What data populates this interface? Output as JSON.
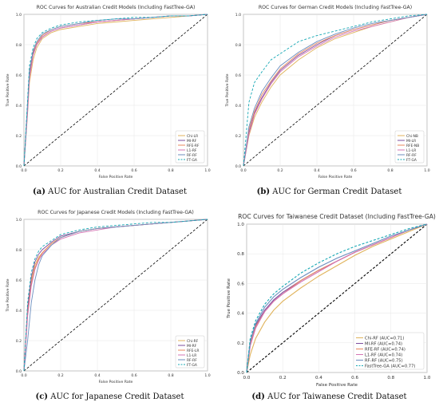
{
  "chart_data": [
    {
      "type": "line",
      "title": "ROC Curves for Australian Credit Models (Including FastTree-GA)",
      "caption_label": "(a)",
      "caption_text": "AUC for Australian Credit Dataset",
      "xlabel": "False Positive Rate",
      "ylabel": "True Positive Rate",
      "xlim": [
        0,
        1
      ],
      "ylim": [
        0,
        1
      ],
      "xticks": [
        "0.0",
        "0.2",
        "0.4",
        "0.6",
        "0.8",
        "1.0"
      ],
      "yticks": [
        "0.0",
        "0.2",
        "0.4",
        "0.6",
        "0.8",
        "1.0"
      ],
      "grid": true,
      "legend_position": "bottom-right",
      "series": [
        {
          "name": "Chi-LR",
          "color": "#e0b35c",
          "dash": false,
          "x": [
            0,
            0.02,
            0.03,
            0.05,
            0.07,
            0.1,
            0.15,
            0.2,
            0.3,
            0.4,
            0.5,
            0.6,
            0.7,
            0.8,
            0.9,
            1.0
          ],
          "y": [
            0,
            0.35,
            0.55,
            0.7,
            0.78,
            0.84,
            0.88,
            0.9,
            0.92,
            0.94,
            0.95,
            0.96,
            0.97,
            0.98,
            0.99,
            1.0
          ]
        },
        {
          "name": "MI-RF",
          "color": "#7d4e9e",
          "dash": false,
          "x": [
            0,
            0.02,
            0.03,
            0.05,
            0.07,
            0.1,
            0.15,
            0.2,
            0.3,
            0.4,
            0.5,
            0.6,
            0.7,
            0.8,
            0.9,
            1.0
          ],
          "y": [
            0,
            0.38,
            0.6,
            0.74,
            0.8,
            0.85,
            0.89,
            0.91,
            0.93,
            0.95,
            0.96,
            0.97,
            0.98,
            0.99,
            0.99,
            1.0
          ]
        },
        {
          "name": "RFE-RF",
          "color": "#e8875e",
          "dash": false,
          "x": [
            0,
            0.02,
            0.03,
            0.05,
            0.07,
            0.1,
            0.15,
            0.2,
            0.3,
            0.4,
            0.5,
            0.6,
            0.7,
            0.8,
            0.9,
            1.0
          ],
          "y": [
            0,
            0.4,
            0.62,
            0.75,
            0.81,
            0.86,
            0.9,
            0.92,
            0.94,
            0.95,
            0.96,
            0.97,
            0.98,
            0.99,
            0.99,
            1.0
          ]
        },
        {
          "name": "L1-RF",
          "color": "#d474b4",
          "dash": false,
          "x": [
            0,
            0.02,
            0.03,
            0.05,
            0.07,
            0.1,
            0.15,
            0.2,
            0.3,
            0.4,
            0.5,
            0.6,
            0.7,
            0.8,
            0.9,
            1.0
          ],
          "y": [
            0,
            0.36,
            0.58,
            0.73,
            0.8,
            0.85,
            0.89,
            0.91,
            0.93,
            0.95,
            0.96,
            0.97,
            0.98,
            0.99,
            0.99,
            1.0
          ]
        },
        {
          "name": "RF-RF",
          "color": "#6c8ebf",
          "dash": false,
          "x": [
            0,
            0.02,
            0.03,
            0.05,
            0.07,
            0.1,
            0.15,
            0.2,
            0.3,
            0.4,
            0.5,
            0.6,
            0.7,
            0.8,
            0.9,
            1.0
          ],
          "y": [
            0,
            0.42,
            0.63,
            0.76,
            0.82,
            0.87,
            0.9,
            0.92,
            0.94,
            0.96,
            0.97,
            0.97,
            0.98,
            0.99,
            0.99,
            1.0
          ]
        },
        {
          "name": "FT-GA",
          "color": "#17a8b5",
          "dash": true,
          "x": [
            0,
            0.02,
            0.03,
            0.05,
            0.07,
            0.1,
            0.15,
            0.2,
            0.3,
            0.4,
            0.5,
            0.6,
            0.7,
            0.8,
            0.9,
            1.0
          ],
          "y": [
            0,
            0.44,
            0.66,
            0.78,
            0.84,
            0.88,
            0.91,
            0.93,
            0.95,
            0.96,
            0.97,
            0.98,
            0.98,
            0.99,
            0.99,
            1.0
          ]
        }
      ]
    },
    {
      "type": "line",
      "title": "ROC Curves for German Credit Models (Including FastTree-GA)",
      "caption_label": "(b)",
      "caption_text": "AUC for German Credit Dataset",
      "xlabel": "False Positive Rate",
      "ylabel": "True Positive Rate",
      "xlim": [
        0,
        1
      ],
      "ylim": [
        0,
        1
      ],
      "xticks": [
        "0.0",
        "0.2",
        "0.4",
        "0.6",
        "0.8",
        "1.0"
      ],
      "yticks": [
        "0.0",
        "0.2",
        "0.4",
        "0.6",
        "0.8",
        "1.0"
      ],
      "grid": true,
      "legend_position": "bottom-right",
      "series": [
        {
          "name": "Chi-NB",
          "color": "#e0b35c",
          "dash": false,
          "x": [
            0,
            0.03,
            0.06,
            0.1,
            0.15,
            0.2,
            0.3,
            0.4,
            0.5,
            0.6,
            0.7,
            0.8,
            0.9,
            1.0
          ],
          "y": [
            0,
            0.2,
            0.32,
            0.42,
            0.52,
            0.6,
            0.7,
            0.78,
            0.84,
            0.88,
            0.92,
            0.95,
            0.98,
            1.0
          ]
        },
        {
          "name": "MI-LR",
          "color": "#7d4e9e",
          "dash": false,
          "x": [
            0,
            0.03,
            0.06,
            0.1,
            0.15,
            0.2,
            0.3,
            0.4,
            0.5,
            0.6,
            0.7,
            0.8,
            0.9,
            1.0
          ],
          "y": [
            0,
            0.22,
            0.35,
            0.45,
            0.55,
            0.63,
            0.73,
            0.8,
            0.86,
            0.9,
            0.93,
            0.96,
            0.98,
            1.0
          ]
        },
        {
          "name": "RFE-NB",
          "color": "#e8875e",
          "dash": false,
          "x": [
            0,
            0.03,
            0.06,
            0.1,
            0.15,
            0.2,
            0.3,
            0.4,
            0.5,
            0.6,
            0.7,
            0.8,
            0.9,
            1.0
          ],
          "y": [
            0,
            0.24,
            0.36,
            0.47,
            0.56,
            0.64,
            0.74,
            0.81,
            0.86,
            0.9,
            0.93,
            0.96,
            0.98,
            1.0
          ]
        },
        {
          "name": "L1-LR",
          "color": "#d474b4",
          "dash": false,
          "x": [
            0,
            0.03,
            0.06,
            0.1,
            0.15,
            0.2,
            0.3,
            0.4,
            0.5,
            0.6,
            0.7,
            0.8,
            0.9,
            1.0
          ],
          "y": [
            0,
            0.21,
            0.34,
            0.44,
            0.54,
            0.62,
            0.72,
            0.79,
            0.85,
            0.89,
            0.92,
            0.95,
            0.98,
            1.0
          ]
        },
        {
          "name": "RF-RF",
          "color": "#6c8ebf",
          "dash": false,
          "x": [
            0,
            0.03,
            0.06,
            0.1,
            0.15,
            0.2,
            0.3,
            0.4,
            0.5,
            0.6,
            0.7,
            0.8,
            0.9,
            1.0
          ],
          "y": [
            0,
            0.26,
            0.38,
            0.49,
            0.58,
            0.66,
            0.75,
            0.82,
            0.87,
            0.91,
            0.94,
            0.96,
            0.98,
            1.0
          ]
        },
        {
          "name": "FT-GA",
          "color": "#17a8b5",
          "dash": true,
          "x": [
            0,
            0.03,
            0.06,
            0.1,
            0.15,
            0.2,
            0.3,
            0.4,
            0.5,
            0.6,
            0.7,
            0.8,
            0.9,
            1.0
          ],
          "y": [
            0,
            0.42,
            0.55,
            0.62,
            0.7,
            0.74,
            0.82,
            0.86,
            0.89,
            0.92,
            0.95,
            0.97,
            0.99,
            1.0
          ]
        }
      ]
    },
    {
      "type": "line",
      "title": "ROC Curves for Japanese Credit Models (Including FastTree-GA)",
      "caption_label": "(c)",
      "caption_text": "AUC for Japanese Credit Dataset",
      "xlabel": "False Positive Rate",
      "ylabel": "True Positive Rate",
      "xlim": [
        0,
        1
      ],
      "ylim": [
        0,
        1
      ],
      "xticks": [
        "0.0",
        "0.2",
        "0.4",
        "0.6",
        "0.8",
        "1.0"
      ],
      "yticks": [
        "0.0",
        "0.2",
        "0.4",
        "0.6",
        "0.8",
        "1.0"
      ],
      "grid": true,
      "legend_position": "bottom-right",
      "series": [
        {
          "name": "Chi-RF",
          "color": "#e0b35c",
          "dash": false,
          "x": [
            0,
            0.02,
            0.04,
            0.06,
            0.08,
            0.1,
            0.15,
            0.2,
            0.3,
            0.4,
            0.5,
            0.6,
            0.7,
            0.8,
            0.9,
            1.0
          ],
          "y": [
            0,
            0.4,
            0.6,
            0.7,
            0.75,
            0.78,
            0.84,
            0.88,
            0.92,
            0.94,
            0.95,
            0.96,
            0.97,
            0.98,
            0.99,
            1.0
          ]
        },
        {
          "name": "MI-RF",
          "color": "#7d4e9e",
          "dash": false,
          "x": [
            0,
            0.02,
            0.04,
            0.06,
            0.08,
            0.1,
            0.15,
            0.2,
            0.3,
            0.4,
            0.5,
            0.6,
            0.7,
            0.8,
            0.9,
            1.0
          ],
          "y": [
            0,
            0.42,
            0.62,
            0.72,
            0.77,
            0.8,
            0.85,
            0.89,
            0.92,
            0.94,
            0.95,
            0.96,
            0.97,
            0.98,
            0.99,
            1.0
          ]
        },
        {
          "name": "RFE-LR",
          "color": "#e8875e",
          "dash": false,
          "x": [
            0,
            0.02,
            0.04,
            0.06,
            0.08,
            0.1,
            0.15,
            0.2,
            0.3,
            0.4,
            0.5,
            0.6,
            0.7,
            0.8,
            0.9,
            1.0
          ],
          "y": [
            0,
            0.38,
            0.58,
            0.68,
            0.74,
            0.78,
            0.84,
            0.88,
            0.92,
            0.94,
            0.95,
            0.96,
            0.97,
            0.98,
            0.99,
            1.0
          ]
        },
        {
          "name": "L1-LR",
          "color": "#d474b4",
          "dash": false,
          "x": [
            0,
            0.02,
            0.04,
            0.06,
            0.08,
            0.1,
            0.15,
            0.2,
            0.3,
            0.4,
            0.5,
            0.6,
            0.7,
            0.8,
            0.9,
            1.0
          ],
          "y": [
            0,
            0.36,
            0.56,
            0.67,
            0.73,
            0.77,
            0.83,
            0.87,
            0.91,
            0.93,
            0.95,
            0.96,
            0.97,
            0.98,
            0.99,
            1.0
          ]
        },
        {
          "name": "RF-RF",
          "color": "#6c8ebf",
          "dash": false,
          "x": [
            0,
            0.02,
            0.04,
            0.06,
            0.08,
            0.1,
            0.15,
            0.2,
            0.3,
            0.4,
            0.5,
            0.6,
            0.7,
            0.8,
            0.9,
            1.0
          ],
          "y": [
            0,
            0.2,
            0.45,
            0.6,
            0.7,
            0.76,
            0.83,
            0.88,
            0.92,
            0.94,
            0.95,
            0.96,
            0.97,
            0.98,
            0.99,
            1.0
          ]
        },
        {
          "name": "FT-GA",
          "color": "#17a8b5",
          "dash": true,
          "x": [
            0,
            0.02,
            0.04,
            0.06,
            0.08,
            0.1,
            0.15,
            0.2,
            0.3,
            0.4,
            0.5,
            0.6,
            0.7,
            0.8,
            0.9,
            1.0
          ],
          "y": [
            0,
            0.45,
            0.65,
            0.74,
            0.79,
            0.82,
            0.86,
            0.9,
            0.93,
            0.95,
            0.96,
            0.97,
            0.98,
            0.98,
            0.99,
            1.0
          ]
        }
      ]
    },
    {
      "type": "line",
      "title": "ROC Curves for Taiwanese Credit Dataset (Including FastTree-GA)",
      "caption_label": "(d)",
      "caption_text": "AUC for Taiwanese Credit Dataset",
      "xlabel": "False Positive Rate",
      "ylabel": "True Positive Rate",
      "xlim": [
        0,
        1
      ],
      "ylim": [
        0,
        1
      ],
      "xticks": [
        "0.0",
        "0.2",
        "0.4",
        "0.6",
        "0.8",
        "1.0"
      ],
      "yticks": [
        "0.0",
        "0.2",
        "0.4",
        "0.6",
        "0.8",
        "1.0"
      ],
      "grid": true,
      "legend_position": "bottom-right",
      "series": [
        {
          "name": "Chi-RF (AUC=0.71)",
          "color": "#e0b35c",
          "dash": false,
          "x": [
            0,
            0.02,
            0.05,
            0.1,
            0.15,
            0.2,
            0.3,
            0.4,
            0.5,
            0.6,
            0.7,
            0.8,
            0.9,
            1.0
          ],
          "y": [
            0,
            0.12,
            0.23,
            0.34,
            0.42,
            0.48,
            0.57,
            0.65,
            0.72,
            0.79,
            0.85,
            0.9,
            0.95,
            1.0
          ]
        },
        {
          "name": "MI-RF (AUC=0.74)",
          "color": "#7d4e9e",
          "dash": false,
          "x": [
            0,
            0.02,
            0.05,
            0.1,
            0.15,
            0.2,
            0.3,
            0.4,
            0.5,
            0.6,
            0.7,
            0.8,
            0.9,
            1.0
          ],
          "y": [
            0,
            0.2,
            0.32,
            0.42,
            0.49,
            0.54,
            0.62,
            0.69,
            0.75,
            0.81,
            0.86,
            0.91,
            0.96,
            1.0
          ]
        },
        {
          "name": "RFE-RF (AUC=0.74)",
          "color": "#e8875e",
          "dash": false,
          "x": [
            0,
            0.02,
            0.05,
            0.1,
            0.15,
            0.2,
            0.3,
            0.4,
            0.5,
            0.6,
            0.7,
            0.8,
            0.9,
            1.0
          ],
          "y": [
            0,
            0.19,
            0.31,
            0.41,
            0.48,
            0.53,
            0.62,
            0.69,
            0.75,
            0.81,
            0.86,
            0.91,
            0.96,
            1.0
          ]
        },
        {
          "name": "L1-RF (AUC=0.74)",
          "color": "#d474b4",
          "dash": false,
          "x": [
            0,
            0.02,
            0.05,
            0.1,
            0.15,
            0.2,
            0.3,
            0.4,
            0.5,
            0.6,
            0.7,
            0.8,
            0.9,
            1.0
          ],
          "y": [
            0,
            0.18,
            0.3,
            0.41,
            0.48,
            0.53,
            0.61,
            0.68,
            0.75,
            0.81,
            0.86,
            0.91,
            0.96,
            1.0
          ]
        },
        {
          "name": "RF-RF (AUC=0.75)",
          "color": "#6c8ebf",
          "dash": false,
          "x": [
            0,
            0.02,
            0.05,
            0.1,
            0.15,
            0.2,
            0.3,
            0.4,
            0.5,
            0.6,
            0.7,
            0.8,
            0.9,
            1.0
          ],
          "y": [
            0,
            0.21,
            0.33,
            0.44,
            0.51,
            0.56,
            0.64,
            0.71,
            0.77,
            0.82,
            0.87,
            0.92,
            0.96,
            1.0
          ]
        },
        {
          "name": "FastTree-GA (AUC=0.77)",
          "color": "#17a8b5",
          "dash": true,
          "x": [
            0,
            0.02,
            0.05,
            0.1,
            0.15,
            0.2,
            0.3,
            0.4,
            0.5,
            0.6,
            0.7,
            0.8,
            0.9,
            1.0
          ],
          "y": [
            0,
            0.23,
            0.35,
            0.46,
            0.53,
            0.58,
            0.67,
            0.74,
            0.8,
            0.85,
            0.89,
            0.93,
            0.97,
            1.0
          ]
        }
      ]
    }
  ]
}
